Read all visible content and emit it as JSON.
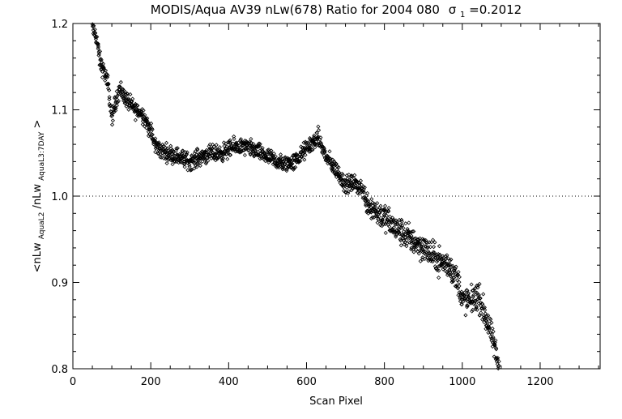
{
  "chart_data": {
    "type": "scatter",
    "title": "MODIS/Aqua AV39 nLw(678) Ratio for 2004 080",
    "title_sigma": {
      "symbol": "σ",
      "subscript": "1",
      "value": "=0.2012"
    },
    "xlabel": "Scan Pixel",
    "ylabel": {
      "prefix": "<nLw",
      "sub1": "AquaL2",
      "mid": "/nLw",
      "sub2": "AquaL3:7DAY",
      "suffix": ">"
    },
    "xlim": [
      0,
      1354
    ],
    "ylim": [
      0.8,
      1.2
    ],
    "x_ticks": [
      0,
      200,
      400,
      600,
      800,
      1000,
      1200
    ],
    "x_tick_labels": [
      "0",
      "200",
      "400",
      "600",
      "800",
      "1000",
      "1200"
    ],
    "y_ticks": [
      0.8,
      0.9,
      1.0,
      1.1,
      1.2
    ],
    "y_tick_labels": [
      "0.8",
      "0.9",
      "1.0",
      "1.1",
      "1.2"
    ],
    "reference_line": {
      "y": 1.0,
      "style": "dotted"
    },
    "marker": "diamond-open",
    "trend": [
      [
        50,
        1.195
      ],
      [
        60,
        1.185
      ],
      [
        70,
        1.155
      ],
      [
        80,
        1.145
      ],
      [
        90,
        1.13
      ],
      [
        100,
        1.09
      ],
      [
        110,
        1.11
      ],
      [
        120,
        1.125
      ],
      [
        140,
        1.11
      ],
      [
        160,
        1.1
      ],
      [
        180,
        1.095
      ],
      [
        200,
        1.075
      ],
      [
        210,
        1.06
      ],
      [
        230,
        1.052
      ],
      [
        260,
        1.048
      ],
      [
        300,
        1.04
      ],
      [
        340,
        1.048
      ],
      [
        380,
        1.05
      ],
      [
        420,
        1.058
      ],
      [
        460,
        1.055
      ],
      [
        500,
        1.045
      ],
      [
        540,
        1.037
      ],
      [
        570,
        1.04
      ],
      [
        600,
        1.055
      ],
      [
        630,
        1.068
      ],
      [
        650,
        1.045
      ],
      [
        680,
        1.028
      ],
      [
        700,
        1.013
      ],
      [
        720,
        1.015
      ],
      [
        740,
        1.01
      ],
      [
        760,
        0.99
      ],
      [
        800,
        0.975
      ],
      [
        830,
        0.962
      ],
      [
        860,
        0.953
      ],
      [
        900,
        0.94
      ],
      [
        940,
        0.925
      ],
      [
        970,
        0.918
      ],
      [
        990,
        0.9
      ],
      [
        1000,
        0.88
      ],
      [
        1020,
        0.878
      ],
      [
        1040,
        0.885
      ],
      [
        1060,
        0.86
      ],
      [
        1080,
        0.83
      ],
      [
        1095,
        0.8
      ]
    ],
    "scatter_spread": 0.006,
    "points_per_pixel_step": 1.5
  }
}
